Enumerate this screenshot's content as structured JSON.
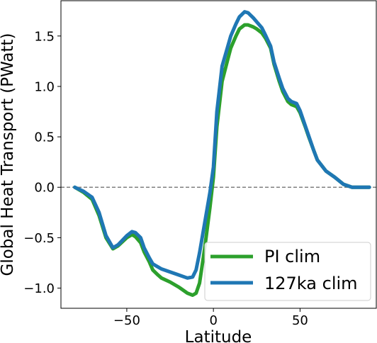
{
  "chart_data": {
    "type": "line",
    "title": "",
    "xlabel": "Latitude",
    "ylabel": "Global Heat Transport (PWatt)",
    "xlim": [
      -88,
      94
    ],
    "ylim": [
      -1.2,
      1.85
    ],
    "xticks": [
      -50,
      0,
      50
    ],
    "yticks": [
      -1.0,
      -0.5,
      0.0,
      0.5,
      1.0,
      1.5
    ],
    "xtick_labels": [
      "−50",
      "0",
      "50"
    ],
    "ytick_labels": [
      "−1.0",
      "−0.5",
      "0.0",
      "0.5",
      "1.0",
      "1.5"
    ],
    "grid": false,
    "reference_line": {
      "y": 0.0,
      "style": "dashed",
      "color": "#808080"
    },
    "legend": {
      "placement": "lower-right"
    },
    "series": [
      {
        "name": "PI clim",
        "color": "#2ca02c",
        "x": [
          -80,
          -75,
          -70,
          -66,
          -62,
          -58,
          -55,
          -50,
          -47,
          -45,
          -42,
          -40,
          -37,
          -35,
          -32,
          -30,
          -25,
          -20,
          -15,
          -12,
          -10,
          -8,
          -5,
          -2,
          0,
          2,
          5,
          8,
          10,
          13,
          15,
          18,
          20,
          23,
          25,
          28,
          30,
          33,
          35,
          38,
          40,
          43,
          45,
          48,
          50,
          53,
          55,
          58,
          60,
          65,
          70,
          75,
          80,
          85,
          90
        ],
        "y": [
          0.0,
          -0.05,
          -0.12,
          -0.28,
          -0.5,
          -0.61,
          -0.58,
          -0.5,
          -0.47,
          -0.49,
          -0.55,
          -0.64,
          -0.74,
          -0.82,
          -0.87,
          -0.9,
          -0.94,
          -0.99,
          -1.05,
          -1.07,
          -1.05,
          -0.95,
          -0.6,
          -0.2,
          0.1,
          0.6,
          1.05,
          1.25,
          1.38,
          1.5,
          1.57,
          1.61,
          1.61,
          1.59,
          1.57,
          1.53,
          1.48,
          1.38,
          1.22,
          1.05,
          0.95,
          0.85,
          0.82,
          0.8,
          0.74,
          0.6,
          0.5,
          0.36,
          0.27,
          0.16,
          0.1,
          0.03,
          0.0,
          0.0,
          0.0
        ]
      },
      {
        "name": "127ka clim",
        "color": "#1f77b4",
        "x": [
          -80,
          -75,
          -70,
          -66,
          -62,
          -58,
          -55,
          -50,
          -47,
          -45,
          -42,
          -40,
          -37,
          -35,
          -32,
          -30,
          -25,
          -20,
          -15,
          -12,
          -10,
          -8,
          -5,
          -2,
          0,
          2,
          5,
          8,
          10,
          13,
          15,
          18,
          20,
          23,
          25,
          28,
          30,
          33,
          35,
          38,
          40,
          43,
          45,
          48,
          50,
          53,
          55,
          58,
          60,
          65,
          70,
          75,
          80,
          85,
          90
        ],
        "y": [
          0.0,
          -0.04,
          -0.1,
          -0.25,
          -0.48,
          -0.6,
          -0.57,
          -0.48,
          -0.44,
          -0.45,
          -0.5,
          -0.6,
          -0.7,
          -0.76,
          -0.79,
          -0.81,
          -0.84,
          -0.87,
          -0.9,
          -0.89,
          -0.82,
          -0.65,
          -0.35,
          -0.05,
          0.2,
          0.75,
          1.2,
          1.38,
          1.5,
          1.62,
          1.69,
          1.74,
          1.73,
          1.68,
          1.64,
          1.58,
          1.51,
          1.4,
          1.24,
          1.08,
          0.98,
          0.88,
          0.85,
          0.83,
          0.76,
          0.61,
          0.51,
          0.36,
          0.27,
          0.16,
          0.1,
          0.03,
          0.0,
          0.0,
          0.0
        ]
      }
    ]
  }
}
